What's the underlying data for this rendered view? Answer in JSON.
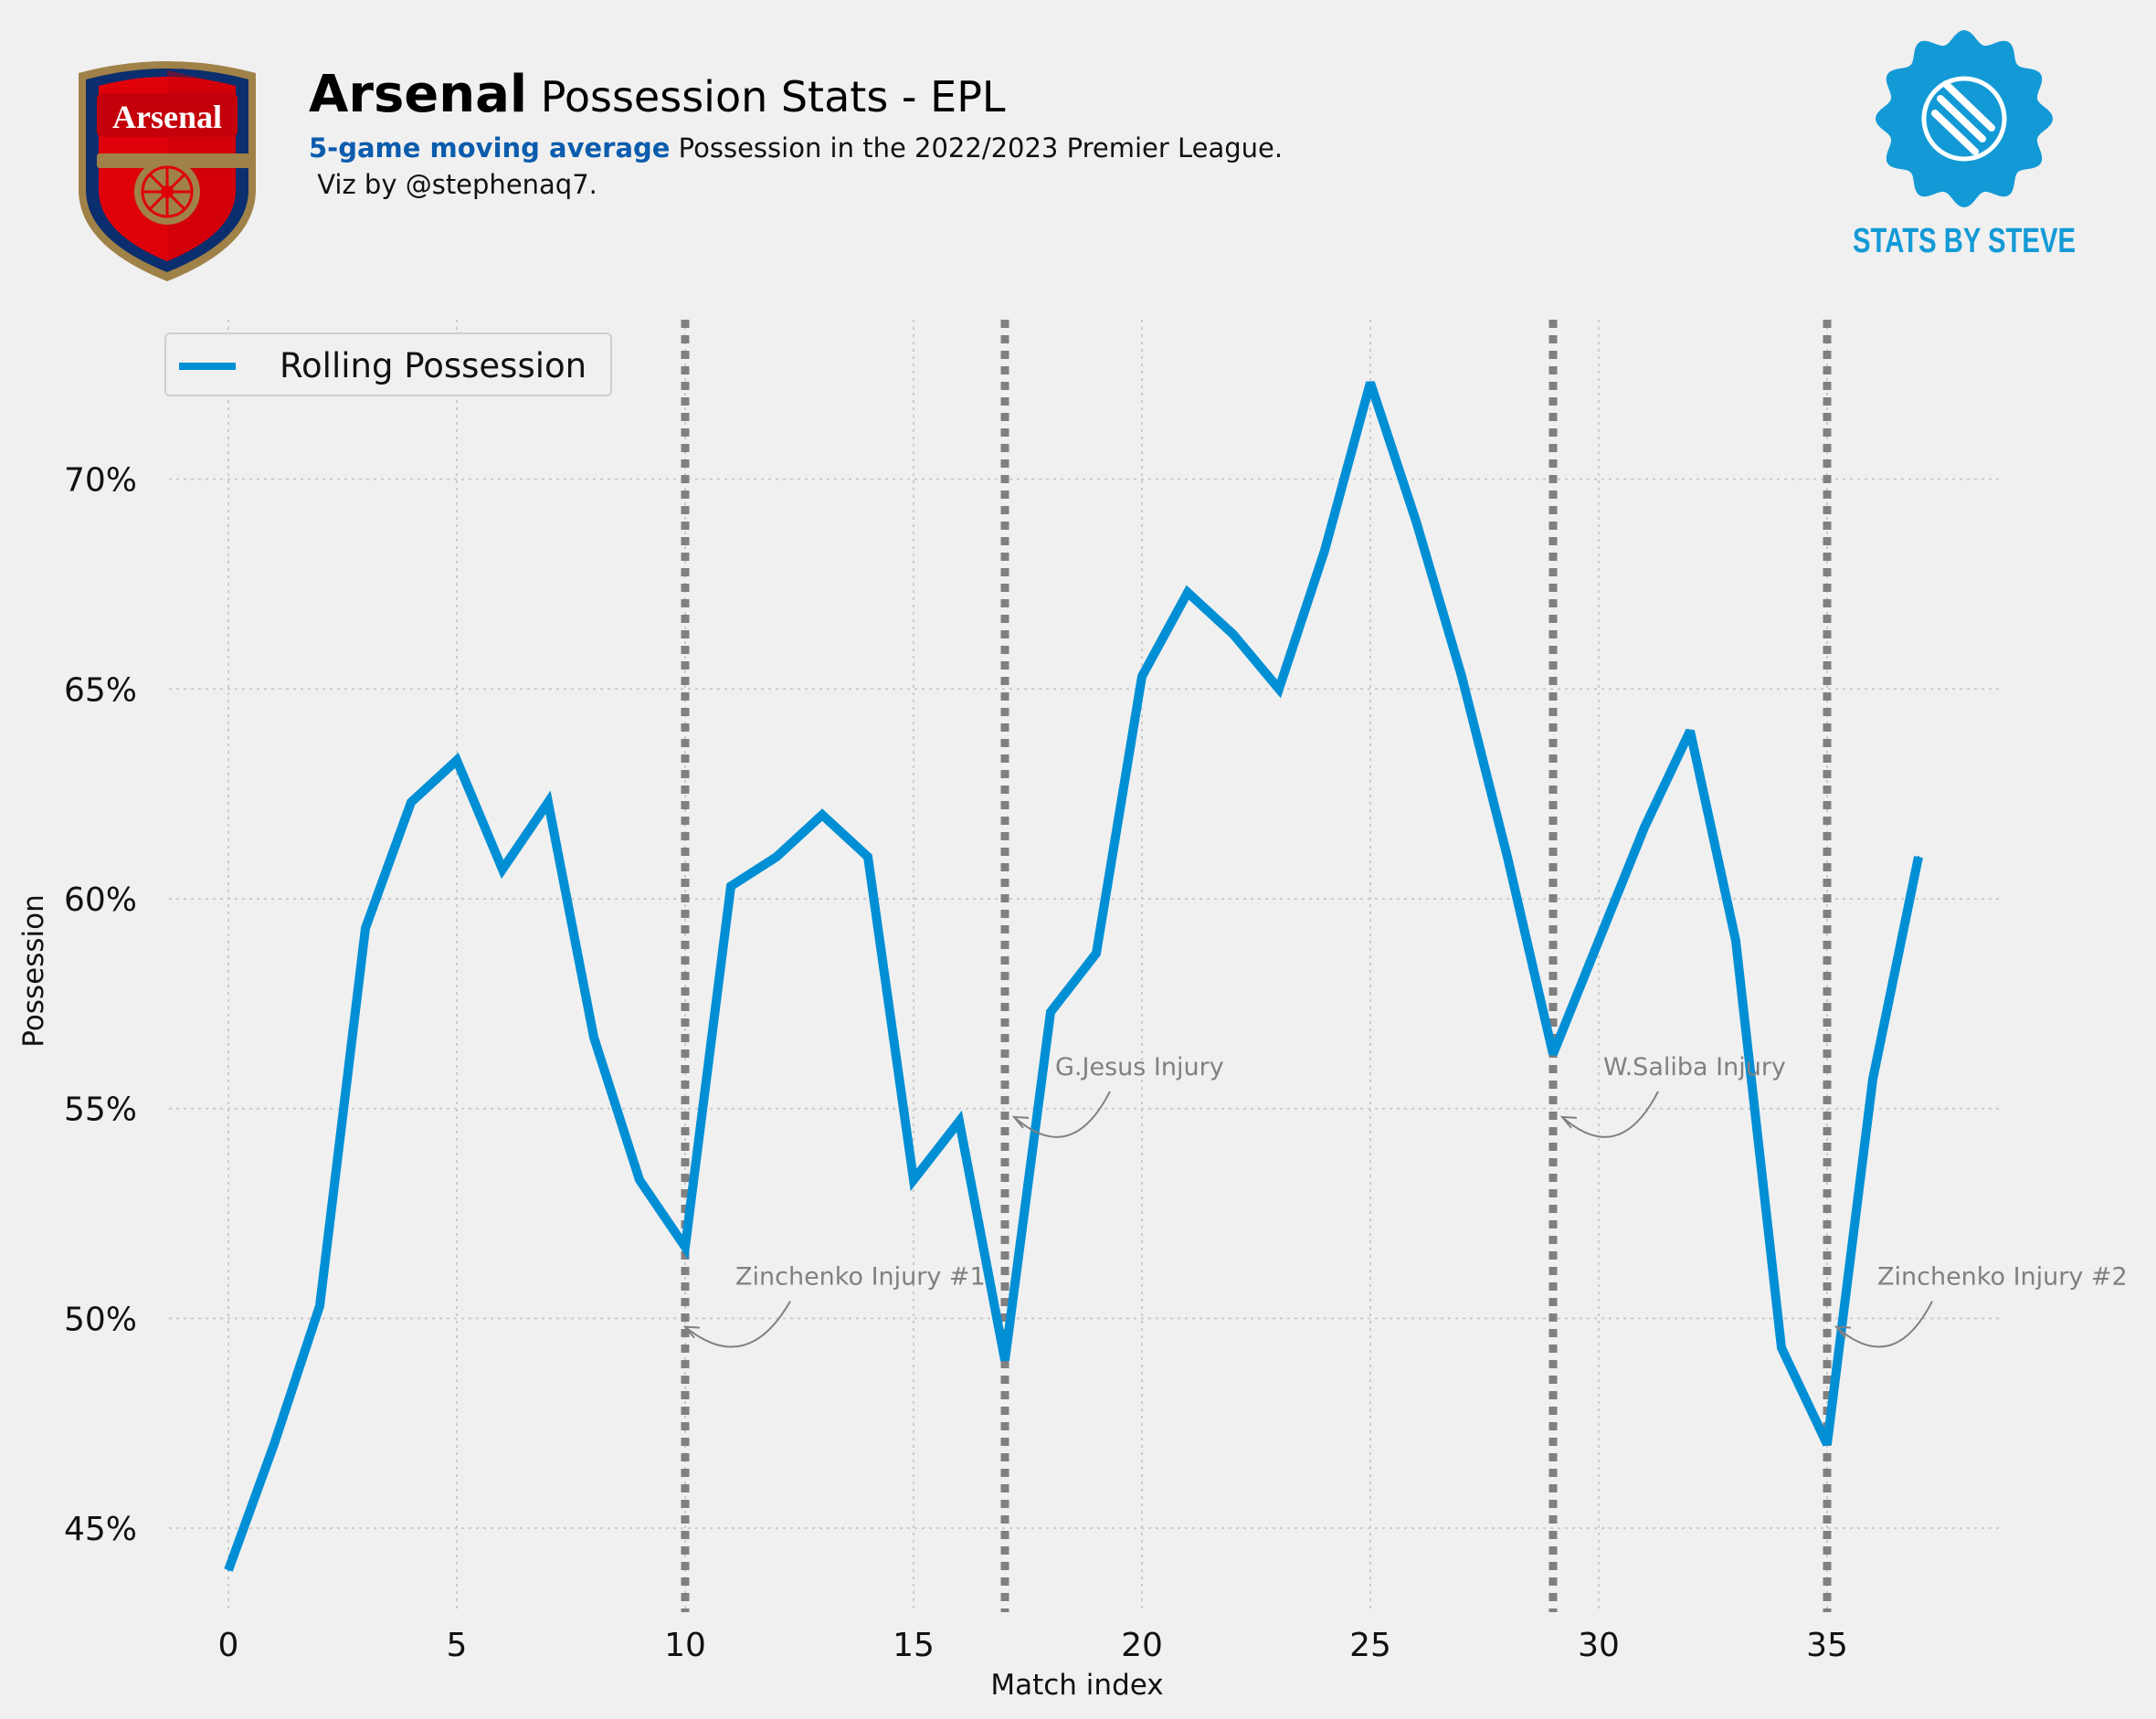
{
  "header": {
    "team": "Arsenal",
    "title_rest": "Possession Stats - EPL",
    "subtitle_highlight": "5-game moving average",
    "subtitle_rest": "Possession in the 2022/2023 Premier League.",
    "credit": " Viz by @stephenaq7.",
    "crest_text": "Arsenal",
    "logo_text": "STATS BY STEVE"
  },
  "colors": {
    "background": "#f0f0f0",
    "line": "#008fd5",
    "vline": "#808080",
    "annotation": "#808080",
    "subtitle_highlight": "#0b5cad",
    "logo": "#139ad6",
    "crest_red": "#e0000a",
    "crest_navy": "#0b2e6e",
    "crest_gold": "#a08148"
  },
  "legend": {
    "label": "Rolling Possession",
    "placement": "upper-left"
  },
  "chart_data": {
    "type": "line",
    "xlabel": "Match index",
    "ylabel": "Possession",
    "xlim": [
      -1.3,
      38.8
    ],
    "ylim": [
      43.0,
      73.8
    ],
    "x_ticks": [
      0,
      5,
      10,
      15,
      20,
      25,
      30,
      35
    ],
    "y_ticks": [
      45,
      50,
      55,
      60,
      65,
      70
    ],
    "y_tick_labels": [
      "45%",
      "50%",
      "55%",
      "60%",
      "65%",
      "70%"
    ],
    "grid": true,
    "series": [
      {
        "name": "Rolling Possession",
        "x": [
          0,
          1,
          2,
          3,
          4,
          5,
          6,
          7,
          8,
          9,
          10,
          11,
          12,
          13,
          14,
          15,
          16,
          17,
          18,
          19,
          20,
          21,
          22,
          23,
          24,
          25,
          26,
          27,
          28,
          29,
          30,
          31,
          32,
          33,
          34,
          35,
          36,
          37
        ],
        "values": [
          44.0,
          47.0,
          50.3,
          59.3,
          62.3,
          63.3,
          60.7,
          62.3,
          56.7,
          53.3,
          51.7,
          60.3,
          61.0,
          62.0,
          61.0,
          53.3,
          54.7,
          49.0,
          57.3,
          58.7,
          65.3,
          67.3,
          66.3,
          65.0,
          68.3,
          72.3,
          69.0,
          65.3,
          61.0,
          56.3,
          59.0,
          61.7,
          64.0,
          59.0,
          49.3,
          47.0,
          55.7,
          61.0
        ]
      }
    ],
    "vlines": [
      10,
      17,
      29,
      35
    ],
    "annotations": [
      {
        "text": "Zinchenko Injury #1",
        "x": 10,
        "y": 49.8,
        "text_x": 11.1,
        "text_y": 50.8
      },
      {
        "text": "G.Jesus Injury",
        "x": 17.2,
        "y": 54.8,
        "text_x": 18.1,
        "text_y": 55.8
      },
      {
        "text": "W.Saliba Injury",
        "x": 29.2,
        "y": 54.8,
        "text_x": 30.1,
        "text_y": 55.8
      },
      {
        "text": "Zinchenko Injury #2",
        "x": 35.2,
        "y": 49.8,
        "text_x": 36.1,
        "text_y": 50.8
      }
    ]
  }
}
